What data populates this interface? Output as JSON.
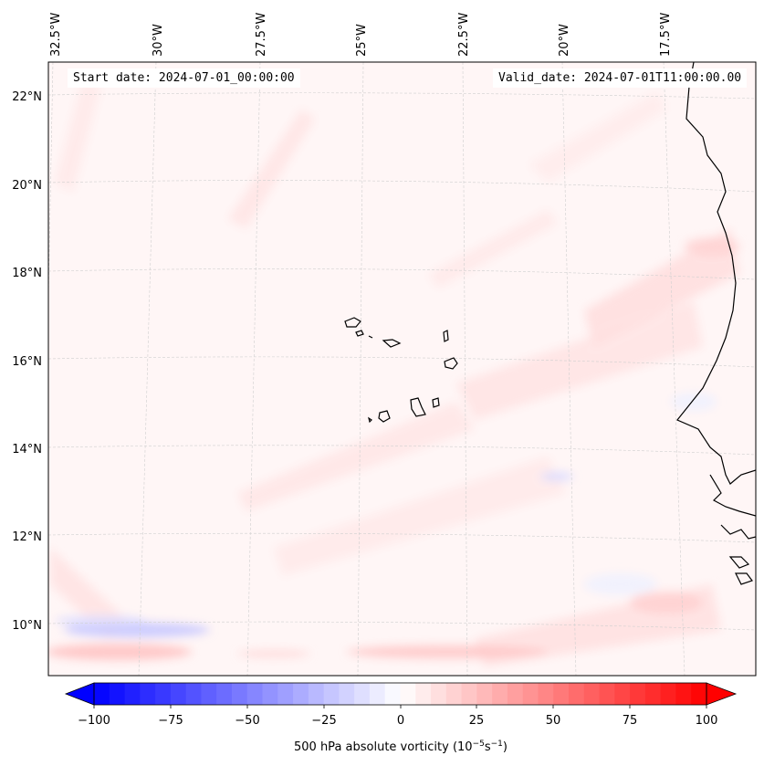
{
  "map": {
    "start_date_label": "Start date: 2024-07-01_00:00:00",
    "valid_date_label": "Valid_date: 2024-07-01T11:00:00.00",
    "lon_labels": [
      "32.5°W",
      "30°W",
      "27.5°W",
      "25°W",
      "22.5°W",
      "20°W",
      "17.5°W"
    ],
    "lat_labels": [
      "22°N",
      "20°N",
      "18°N",
      "16°N",
      "14°N",
      "12°N",
      "10°N"
    ],
    "colorbar": {
      "label": "500 hPa absolute vorticity (10",
      "label_exp1": "−5",
      "label_mid": "s",
      "label_exp2": "−1",
      "label_end": ")",
      "ticks": [
        "−100",
        "−75",
        "−50",
        "−25",
        "0",
        "25",
        "50",
        "75",
        "100"
      ],
      "min_color": "#0000ff",
      "mid_color": "#ffffff",
      "max_color": "#ff0000"
    },
    "colors": {
      "background_field": "#fff5f5",
      "coastline": "#000000",
      "gridline": "#cccccc"
    }
  }
}
